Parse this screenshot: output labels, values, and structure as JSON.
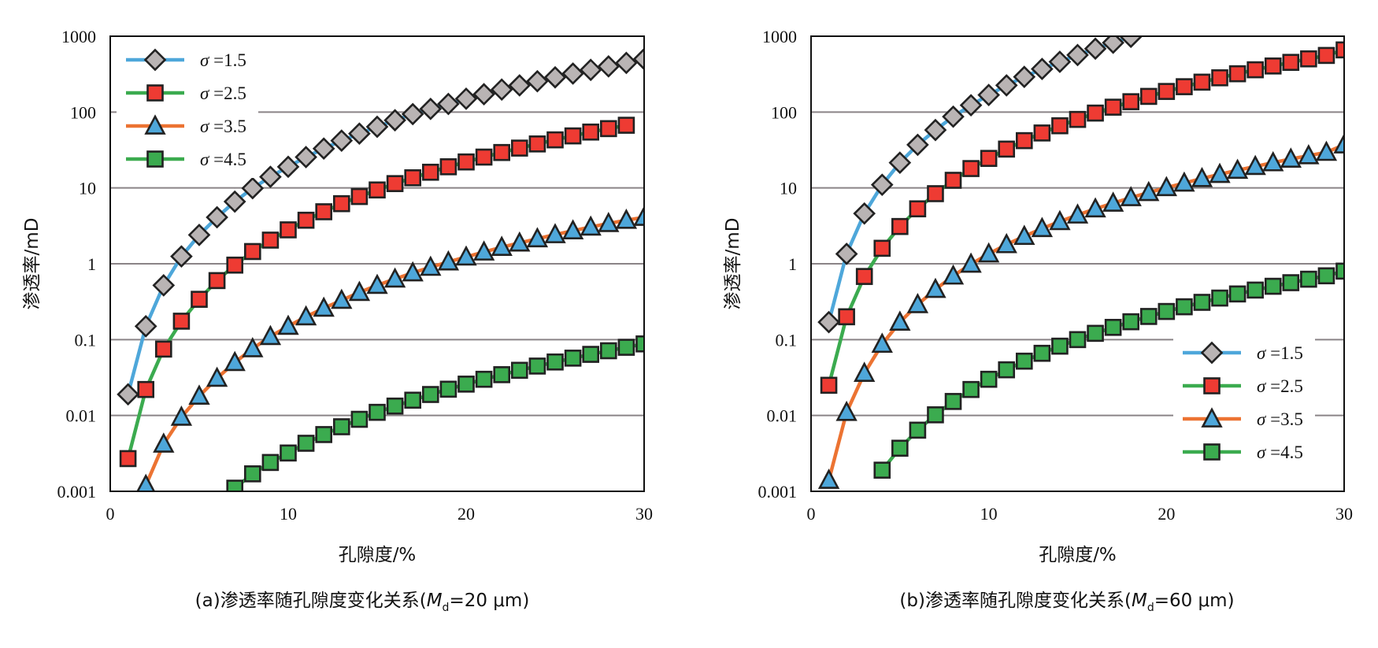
{
  "chart_data": [
    {
      "type": "line",
      "caption": {
        "prefix": "(a)渗透率随孔隙度变化关系(",
        "var": "M",
        "sub": "d",
        "suffix": "=20 μm)"
      },
      "xlabel": "孔隙度/%",
      "ylabel": "渗透率/mD",
      "xlim": [
        0,
        30
      ],
      "ylim": [
        0.001,
        1000
      ],
      "yscale": "log",
      "xticks": [
        "0",
        "10",
        "20",
        "30"
      ],
      "yticks": [
        "0.001",
        "0.01",
        "0.1",
        "1",
        "10",
        "100",
        "1000"
      ],
      "grid": "horizontal",
      "legend_position": "top-left",
      "series": [
        {
          "name": "σ =1.5",
          "line_color": "#4ea7da",
          "marker": "diamond",
          "marker_color": "#b9b4b4",
          "x": [
            1,
            2,
            3,
            4,
            5,
            6,
            7,
            8,
            9,
            10,
            11,
            12,
            13,
            14,
            15,
            16,
            17,
            18,
            19,
            20,
            21,
            22,
            23,
            24,
            25,
            26,
            27,
            28,
            29,
            30
          ],
          "y": [
            0.019,
            0.15,
            0.52,
            1.25,
            2.4,
            4.1,
            6.6,
            9.9,
            14,
            19,
            25.5,
            33,
            42,
            52,
            64,
            78,
            94,
            110,
            128,
            150,
            172,
            198,
            225,
            255,
            287,
            322,
            360,
            400,
            445,
            500
          ]
        },
        {
          "name": "σ =2.5",
          "line_color": "#3bab4f",
          "marker": "square",
          "marker_color": "#ee3b33",
          "x": [
            1,
            2,
            3,
            4,
            5,
            6,
            7,
            8,
            9,
            10,
            11,
            12,
            13,
            14,
            15,
            16,
            17,
            18,
            19,
            20,
            21,
            22,
            23,
            24,
            25,
            26,
            27,
            28,
            29
          ],
          "y": [
            0.0027,
            0.022,
            0.075,
            0.175,
            0.34,
            0.6,
            0.96,
            1.45,
            2.05,
            2.8,
            3.75,
            4.85,
            6.2,
            7.7,
            9.4,
            11.4,
            13.6,
            16.1,
            19,
            22,
            25.5,
            29.3,
            33.5,
            38,
            43,
            48.5,
            54.5,
            60.5,
            67
          ]
        },
        {
          "name": "σ =3.5",
          "line_color": "#ec7332",
          "marker": "triangle",
          "marker_color": "#4ea7da",
          "x": [
            2,
            3,
            4,
            5,
            6,
            7,
            8,
            9,
            10,
            11,
            12,
            13,
            14,
            15,
            16,
            17,
            18,
            19,
            20,
            21,
            22,
            23,
            24,
            25,
            26,
            27,
            28,
            29,
            30
          ],
          "y": [
            0.0012,
            0.0042,
            0.0095,
            0.018,
            0.031,
            0.05,
            0.076,
            0.11,
            0.15,
            0.2,
            0.26,
            0.33,
            0.42,
            0.52,
            0.63,
            0.76,
            0.9,
            1.06,
            1.23,
            1.43,
            1.65,
            1.88,
            2.14,
            2.42,
            2.72,
            3.05,
            3.4,
            3.75,
            4.1
          ]
        },
        {
          "name": "σ =4.5",
          "line_color": "#3bab4f",
          "marker": "square",
          "marker_color": "#3bab4f",
          "x": [
            7,
            8,
            9,
            10,
            11,
            12,
            13,
            14,
            15,
            16,
            17,
            18,
            19,
            20,
            21,
            22,
            23,
            24,
            25,
            26,
            27,
            28,
            29,
            30
          ],
          "y": [
            0.0011,
            0.0017,
            0.0024,
            0.0032,
            0.0043,
            0.0056,
            0.0071,
            0.0089,
            0.011,
            0.0133,
            0.0159,
            0.0189,
            0.0222,
            0.0259,
            0.03,
            0.0345,
            0.0394,
            0.0448,
            0.0507,
            0.057,
            0.0639,
            0.0713,
            0.0792,
            0.0878
          ]
        }
      ]
    },
    {
      "type": "line",
      "caption": {
        "prefix": "(b)渗透率随孔隙度变化关系(",
        "var": "M",
        "sub": "d",
        "suffix": "=60 μm)"
      },
      "xlabel": "孔隙度/%",
      "ylabel": "渗透率/mD",
      "xlim": [
        0,
        30
      ],
      "ylim": [
        0.001,
        1000
      ],
      "yscale": "log",
      "xticks": [
        "0",
        "10",
        "20",
        "30"
      ],
      "yticks": [
        "0.001",
        "0.01",
        "0.1",
        "1",
        "10",
        "100",
        "1000"
      ],
      "grid": "horizontal",
      "legend_position": "bottom-right",
      "series": [
        {
          "name": "σ =1.5",
          "line_color": "#4ea7da",
          "marker": "diamond",
          "marker_color": "#b9b4b4",
          "x": [
            1,
            2,
            3,
            4,
            5,
            6,
            7,
            8,
            9,
            10,
            11,
            12,
            13,
            14,
            15,
            16,
            17,
            18
          ],
          "y": [
            0.17,
            1.35,
            4.6,
            11,
            21.5,
            37,
            58,
            87,
            123,
            168,
            225,
            291,
            370,
            460,
            565,
            685,
            820,
            980
          ]
        },
        {
          "name": "σ =2.5",
          "line_color": "#3bab4f",
          "marker": "square",
          "marker_color": "#ee3b33",
          "x": [
            1,
            2,
            3,
            4,
            5,
            6,
            7,
            8,
            9,
            10,
            11,
            12,
            13,
            14,
            15,
            16,
            17,
            18,
            19,
            20,
            21,
            22,
            23,
            24,
            25,
            26,
            27,
            28,
            29,
            30
          ],
          "y": [
            0.025,
            0.2,
            0.68,
            1.6,
            3.1,
            5.3,
            8.4,
            12.6,
            18,
            24.5,
            32.5,
            42,
            53,
            66,
            80,
            97,
            116,
            137,
            161,
            187,
            216,
            248,
            283,
            320,
            361,
            405,
            452,
            503,
            558,
            660
          ]
        },
        {
          "name": "σ =3.5",
          "line_color": "#ec7332",
          "marker": "triangle",
          "marker_color": "#4ea7da",
          "x": [
            1,
            2,
            3,
            4,
            5,
            6,
            7,
            8,
            9,
            10,
            11,
            12,
            13,
            14,
            15,
            16,
            17,
            18,
            19,
            20,
            21,
            22,
            23,
            24,
            25,
            26,
            27,
            28,
            29,
            30
          ],
          "y": [
            0.0014,
            0.011,
            0.036,
            0.087,
            0.17,
            0.29,
            0.46,
            0.69,
            0.99,
            1.35,
            1.79,
            2.3,
            2.92,
            3.6,
            4.4,
            5.3,
            6.3,
            7.45,
            8.7,
            10.1,
            11.6,
            13.3,
            15.1,
            17.1,
            19.2,
            21.5,
            24,
            26.6,
            29.5,
            37
          ]
        },
        {
          "name": "σ =4.5",
          "line_color": "#3bab4f",
          "marker": "square",
          "marker_color": "#3bab4f",
          "x": [
            4,
            5,
            6,
            7,
            8,
            9,
            10,
            11,
            12,
            13,
            14,
            15,
            16,
            17,
            18,
            19,
            20,
            21,
            22,
            23,
            24,
            25,
            26,
            27,
            28,
            29,
            30
          ],
          "y": [
            0.0019,
            0.0037,
            0.0064,
            0.0102,
            0.0153,
            0.022,
            0.03,
            0.04,
            0.052,
            0.066,
            0.082,
            0.1,
            0.121,
            0.145,
            0.172,
            0.202,
            0.235,
            0.271,
            0.31,
            0.353,
            0.4,
            0.45,
            0.505,
            0.563,
            0.626,
            0.694,
            0.8
          ]
        }
      ]
    }
  ]
}
